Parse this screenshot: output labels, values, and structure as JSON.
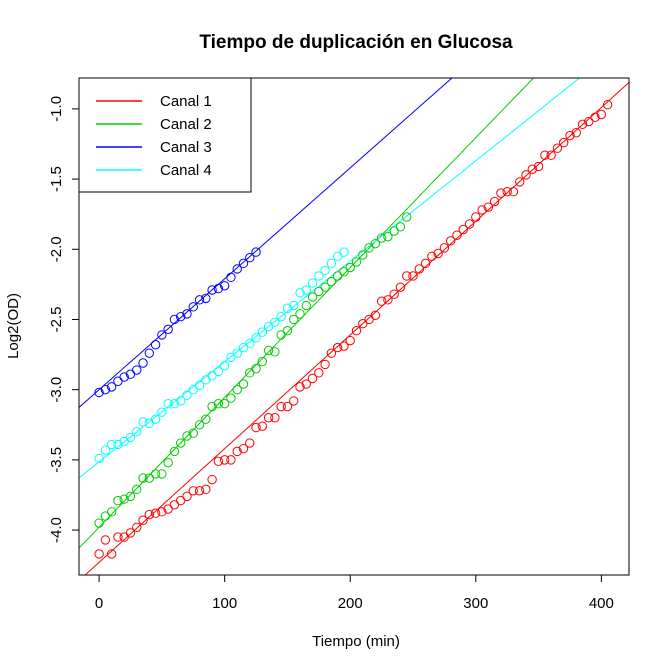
{
  "chart_data": {
    "type": "scatter",
    "title": "Tiempo de duplicación en Glucosa",
    "xlabel": "Tiempo (min)",
    "ylabel": "Log2(OD)",
    "xlim": [
      -16,
      422
    ],
    "ylim": [
      -4.32,
      -0.78
    ],
    "xticks": [
      0,
      100,
      200,
      300,
      400
    ],
    "yticks": [
      -4.0,
      -3.5,
      -3.0,
      -2.5,
      -2.0,
      -1.5,
      -1.0
    ],
    "xtick_labels": [
      "0",
      "100",
      "200",
      "300",
      "400"
    ],
    "ytick_labels": [
      "-4.0",
      "-3.5",
      "-3.0",
      "-2.5",
      "-2.0",
      "-1.5",
      "-1.0"
    ],
    "legend_position": "top-left",
    "grid": false,
    "series": [
      {
        "name": "Canal 1",
        "color": "#ff0000",
        "fit": {
          "intercept": -4.23,
          "slope": 0.0081
        },
        "x": [
          0,
          5,
          10,
          15,
          20,
          25,
          30,
          35,
          40,
          45,
          50,
          55,
          60,
          65,
          70,
          75,
          80,
          85,
          90,
          95,
          100,
          105,
          110,
          115,
          120,
          125,
          130,
          135,
          140,
          145,
          150,
          155,
          160,
          165,
          170,
          175,
          180,
          185,
          190,
          195,
          200,
          205,
          210,
          215,
          220,
          225,
          230,
          235,
          240,
          245,
          250,
          255,
          260,
          265,
          270,
          275,
          280,
          285,
          290,
          295,
          300,
          305,
          310,
          315,
          320,
          325,
          330,
          335,
          340,
          345,
          350,
          355,
          360,
          365,
          370,
          375,
          380,
          385,
          390,
          395,
          400,
          405
        ],
        "y": [
          -4.17,
          -4.07,
          -4.17,
          -4.05,
          -4.05,
          -4.02,
          -3.98,
          -3.93,
          -3.89,
          -3.88,
          -3.87,
          -3.85,
          -3.82,
          -3.79,
          -3.76,
          -3.72,
          -3.72,
          -3.71,
          -3.64,
          -3.51,
          -3.5,
          -3.5,
          -3.44,
          -3.42,
          -3.38,
          -3.27,
          -3.26,
          -3.2,
          -3.2,
          -3.12,
          -3.12,
          -3.08,
          -2.98,
          -2.96,
          -2.92,
          -2.88,
          -2.82,
          -2.74,
          -2.7,
          -2.69,
          -2.65,
          -2.58,
          -2.53,
          -2.5,
          -2.47,
          -2.37,
          -2.36,
          -2.32,
          -2.27,
          -2.19,
          -2.19,
          -2.14,
          -2.1,
          -2.05,
          -2.03,
          -1.99,
          -1.94,
          -1.9,
          -1.86,
          -1.82,
          -1.77,
          -1.72,
          -1.7,
          -1.66,
          -1.6,
          -1.59,
          -1.59,
          -1.52,
          -1.47,
          -1.43,
          -1.41,
          -1.33,
          -1.33,
          -1.28,
          -1.24,
          -1.19,
          -1.17,
          -1.11,
          -1.09,
          -1.06,
          -1.04,
          -0.97
        ]
      },
      {
        "name": "Canal 2",
        "color": "#00cd00",
        "fit": {
          "intercept": -3.98,
          "slope": 0.00925
        },
        "x": [
          0,
          5,
          10,
          15,
          20,
          25,
          30,
          35,
          40,
          45,
          50,
          55,
          60,
          65,
          70,
          75,
          80,
          85,
          90,
          95,
          100,
          105,
          110,
          115,
          120,
          125,
          130,
          135,
          140,
          145,
          150,
          155,
          160,
          165,
          170,
          175,
          180,
          185,
          190,
          195,
          200,
          205,
          210,
          215,
          220,
          225,
          230,
          235,
          240,
          245
        ],
        "y": [
          -3.95,
          -3.9,
          -3.87,
          -3.79,
          -3.78,
          -3.76,
          -3.71,
          -3.63,
          -3.63,
          -3.6,
          -3.6,
          -3.52,
          -3.44,
          -3.38,
          -3.33,
          -3.31,
          -3.25,
          -3.21,
          -3.12,
          -3.1,
          -3.1,
          -3.06,
          -3.0,
          -2.96,
          -2.88,
          -2.85,
          -2.8,
          -2.72,
          -2.73,
          -2.61,
          -2.58,
          -2.5,
          -2.46,
          -2.4,
          -2.34,
          -2.3,
          -2.27,
          -2.23,
          -2.19,
          -2.16,
          -2.13,
          -2.09,
          -2.04,
          -1.99,
          -1.96,
          -1.92,
          -1.91,
          -1.87,
          -1.84,
          -1.77
        ]
      },
      {
        "name": "Canal 3",
        "color": "#0000ff",
        "fit": {
          "intercept": -3.0,
          "slope": 0.0079
        },
        "x": [
          0,
          5,
          10,
          15,
          20,
          25,
          30,
          35,
          40,
          45,
          50,
          55,
          60,
          65,
          70,
          75,
          80,
          85,
          90,
          95,
          100,
          105,
          110,
          115,
          120,
          125
        ],
        "y": [
          -3.02,
          -3.0,
          -2.98,
          -2.94,
          -2.91,
          -2.89,
          -2.86,
          -2.81,
          -2.74,
          -2.68,
          -2.61,
          -2.57,
          -2.5,
          -2.48,
          -2.46,
          -2.41,
          -2.36,
          -2.35,
          -2.29,
          -2.28,
          -2.26,
          -2.2,
          -2.14,
          -2.1,
          -2.06,
          -2.02
        ]
      },
      {
        "name": "Canal 4",
        "color": "#00ffff",
        "fit": {
          "intercept": -3.515,
          "slope": 0.00715
        },
        "x": [
          0,
          5,
          10,
          15,
          20,
          25,
          30,
          35,
          40,
          45,
          50,
          55,
          60,
          65,
          70,
          75,
          80,
          85,
          90,
          95,
          100,
          105,
          110,
          115,
          120,
          125,
          130,
          135,
          140,
          145,
          150,
          155,
          160,
          165,
          170,
          175,
          180,
          185,
          190,
          195
        ],
        "y": [
          -3.49,
          -3.43,
          -3.39,
          -3.39,
          -3.37,
          -3.34,
          -3.3,
          -3.23,
          -3.24,
          -3.21,
          -3.16,
          -3.1,
          -3.1,
          -3.08,
          -3.04,
          -3.0,
          -2.97,
          -2.93,
          -2.9,
          -2.87,
          -2.83,
          -2.77,
          -2.74,
          -2.7,
          -2.67,
          -2.63,
          -2.59,
          -2.55,
          -2.52,
          -2.48,
          -2.42,
          -2.4,
          -2.31,
          -2.29,
          -2.24,
          -2.19,
          -2.15,
          -2.1,
          -2.05,
          -2.02
        ]
      }
    ]
  }
}
